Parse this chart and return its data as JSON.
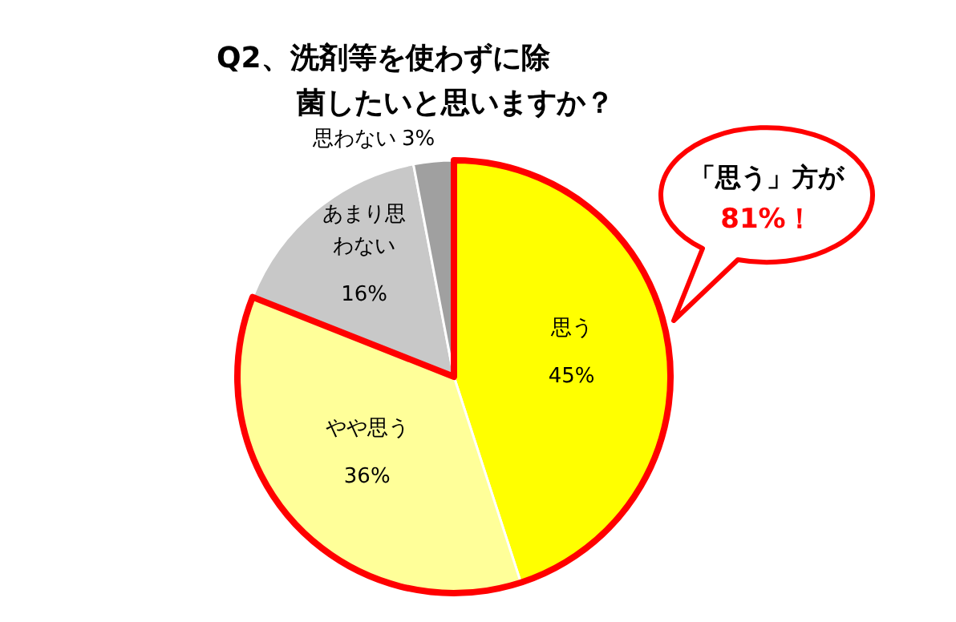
{
  "chart_data": {
    "type": "pie",
    "title": "Q2、洗剤等を使わずに除菌したいと思いますか？",
    "categories": [
      "思う",
      "やや思う",
      "あまり思わない",
      "思わない"
    ],
    "values": [
      45,
      36,
      16,
      3
    ],
    "value_labels": [
      "45%",
      "36%",
      "16%",
      "3%"
    ],
    "colors": [
      "#ffff00",
      "#ffff99",
      "#c8c8c8",
      "#a0a0a0"
    ],
    "annotations": [
      "「思う」方が",
      "81%！"
    ]
  }
}
